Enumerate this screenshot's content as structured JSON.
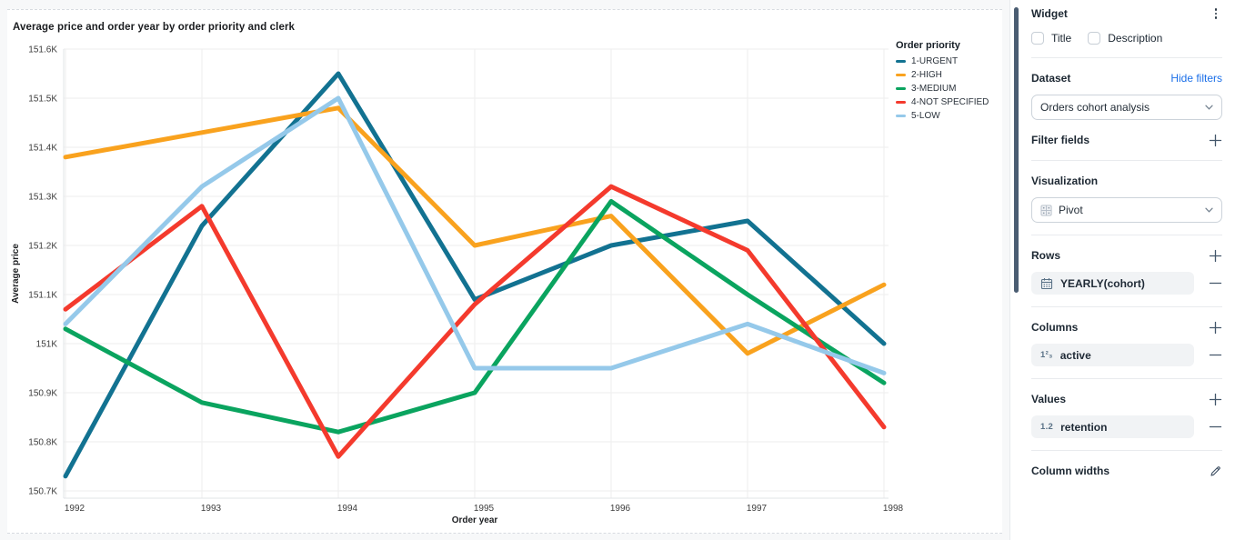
{
  "chart_card": {
    "title": "Average price and order year by order priority and clerk",
    "legend_title": "Order priority"
  },
  "chart_data": {
    "type": "line",
    "title": "Average price and order year by order priority and clerk",
    "xlabel": "Order year",
    "ylabel": "Average price",
    "x": [
      1992,
      1993,
      1994,
      1995,
      1996,
      1997,
      1998
    ],
    "x_tick_labels": [
      "1992",
      "1993",
      "1994",
      "1995",
      "1996",
      "1997",
      "1998"
    ],
    "y_tick_labels": [
      "150.7K",
      "150.8K",
      "150.9K",
      "151K",
      "151.1K",
      "151.2K",
      "151.3K",
      "151.4K",
      "151.5K",
      "151.6K"
    ],
    "ylim": [
      150.7,
      151.6
    ],
    "unit": "K",
    "grid": true,
    "legend_position": "top-right",
    "series": [
      {
        "name": "1-URGENT",
        "color": "#127291",
        "values": [
          150.73,
          151.24,
          151.55,
          151.09,
          151.2,
          151.25,
          151.0
        ]
      },
      {
        "name": "2-HIGH",
        "color": "#f9a21e",
        "values": [
          151.38,
          151.43,
          151.48,
          151.2,
          151.26,
          150.98,
          151.12
        ]
      },
      {
        "name": "3-MEDIUM",
        "color": "#0aa45f",
        "values": [
          151.03,
          150.88,
          150.82,
          150.9,
          151.29,
          151.1,
          150.92
        ]
      },
      {
        "name": "4-NOT SPECIFIED",
        "color": "#f43a2d",
        "values": [
          151.07,
          151.28,
          150.77,
          151.08,
          151.32,
          151.19,
          150.83
        ]
      },
      {
        "name": "5-LOW",
        "color": "#95c9ea",
        "values": [
          151.04,
          151.32,
          151.5,
          150.95,
          150.95,
          151.04,
          150.94
        ]
      }
    ]
  },
  "sidebar": {
    "widget": {
      "title": "Widget",
      "checkboxes": [
        {
          "label": "Title",
          "checked": false
        },
        {
          "label": "Description",
          "checked": false
        }
      ]
    },
    "dataset": {
      "label": "Dataset",
      "link": "Hide filters",
      "selected": "Orders cohort analysis"
    },
    "filter_fields": {
      "label": "Filter fields"
    },
    "visualization": {
      "label": "Visualization",
      "selected": "Pivot"
    },
    "rows": {
      "label": "Rows",
      "items": [
        {
          "icon": "calendar-icon",
          "label": "YEARLY(cohort)"
        }
      ]
    },
    "columns": {
      "label": "Columns",
      "items": [
        {
          "icon": "number-icon",
          "icon_text": "1²₃",
          "label": "active"
        }
      ]
    },
    "values": {
      "label": "Values",
      "items": [
        {
          "icon": "decimal-icon",
          "icon_text": "1.2",
          "label": "retention"
        }
      ]
    },
    "column_widths": {
      "label": "Column widths"
    }
  },
  "colors": {
    "link_blue": "#1b6fe8",
    "scrollbar": "#4a5d72",
    "pill_bg": "#f1f3f5",
    "gridline": "#ededee"
  }
}
